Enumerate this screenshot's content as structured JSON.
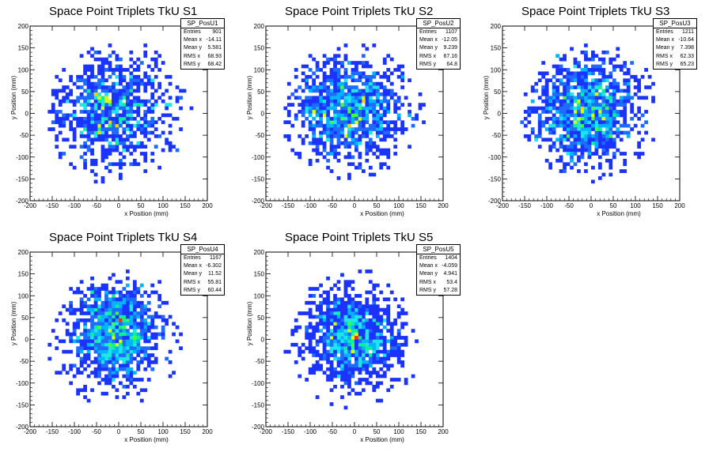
{
  "colors": {
    "palette": [
      "#1a33ff",
      "#1e6bff",
      "#00b4ff",
      "#1ee6e6",
      "#10f090",
      "#40ff40",
      "#d4ff10",
      "#ffd000",
      "#ff3010"
    ],
    "frame": "#000000",
    "background": "#ffffff"
  },
  "chart_data": [
    {
      "type": "heatmap",
      "title": "Space Point Triplets TkU S1",
      "xlabel": "x Position (mm)",
      "ylabel": "y Position (mm)",
      "xlim": [
        -200,
        200
      ],
      "ylim": [
        -200,
        200
      ],
      "xticks": [
        -200,
        -150,
        -100,
        -50,
        0,
        50,
        100,
        150,
        200
      ],
      "yticks": [
        -200,
        -150,
        -100,
        -50,
        0,
        50,
        100,
        150,
        200
      ],
      "bin_width_mm": 8,
      "stats": {
        "name": "SP_PosU1",
        "rows": [
          {
            "label": "Entries",
            "value": "901"
          },
          {
            "label": "Mean x",
            "value": "-14.11"
          },
          {
            "label": "Mean y",
            "value": "5.581"
          },
          {
            "label": "RMS x",
            "value": "68.93"
          },
          {
            "label": "RMS y",
            "value": "68.42"
          }
        ]
      },
      "distribution": {
        "entries": 901,
        "mean_x": -14.11,
        "mean_y": 5.581,
        "rms_x": 68.93,
        "rms_y": 68.42,
        "radius_mm": 165
      }
    },
    {
      "type": "heatmap",
      "title": "Space Point Triplets TkU S2",
      "xlabel": "x Position (mm)",
      "ylabel": "y Position (mm)",
      "xlim": [
        -200,
        200
      ],
      "ylim": [
        -200,
        200
      ],
      "xticks": [
        -200,
        -150,
        -100,
        -50,
        0,
        50,
        100,
        150,
        200
      ],
      "yticks": [
        -200,
        -150,
        -100,
        -50,
        0,
        50,
        100,
        150,
        200
      ],
      "bin_width_mm": 8,
      "stats": {
        "name": "SP_PosU2",
        "rows": [
          {
            "label": "Entries",
            "value": "1107"
          },
          {
            "label": "Mean x",
            "value": "-12.05"
          },
          {
            "label": "Mean y",
            "value": "9.239"
          },
          {
            "label": "RMS x",
            "value": "67.16"
          },
          {
            "label": "RMS y",
            "value": "64.8"
          }
        ]
      },
      "distribution": {
        "entries": 1107,
        "mean_x": -12.05,
        "mean_y": 9.239,
        "rms_x": 67.16,
        "rms_y": 64.8,
        "radius_mm": 165
      }
    },
    {
      "type": "heatmap",
      "title": "Space Point Triplets TkU S3",
      "xlabel": "x Position (mm)",
      "ylabel": "y Position (mm)",
      "xlim": [
        -200,
        200
      ],
      "ylim": [
        -200,
        200
      ],
      "xticks": [
        -200,
        -150,
        -100,
        -50,
        0,
        50,
        100,
        150,
        200
      ],
      "yticks": [
        -200,
        -150,
        -100,
        -50,
        0,
        50,
        100,
        150,
        200
      ],
      "bin_width_mm": 8,
      "stats": {
        "name": "SP_PosU3",
        "rows": [
          {
            "label": "Entries",
            "value": "1211"
          },
          {
            "label": "Mean x",
            "value": "-10.64"
          },
          {
            "label": "Mean y",
            "value": "7.398"
          },
          {
            "label": "RMS x",
            "value": "62.33"
          },
          {
            "label": "RMS y",
            "value": "65.23"
          }
        ]
      },
      "distribution": {
        "entries": 1211,
        "mean_x": -10.64,
        "mean_y": 7.398,
        "rms_x": 62.33,
        "rms_y": 65.23,
        "radius_mm": 160
      }
    },
    {
      "type": "heatmap",
      "title": "Space Point Triplets TkU S4",
      "xlabel": "x Position (mm)",
      "ylabel": "y Position (mm)",
      "xlim": [
        -200,
        200
      ],
      "ylim": [
        -200,
        200
      ],
      "xticks": [
        -200,
        -150,
        -100,
        -50,
        0,
        50,
        100,
        150,
        200
      ],
      "yticks": [
        -200,
        -150,
        -100,
        -50,
        0,
        50,
        100,
        150,
        200
      ],
      "bin_width_mm": 8,
      "stats": {
        "name": "SP_PosU4",
        "rows": [
          {
            "label": "Entries",
            "value": "1167"
          },
          {
            "label": "Mean x",
            "value": "-6.302"
          },
          {
            "label": "Mean y",
            "value": "11.52"
          },
          {
            "label": "RMS x",
            "value": "55.81"
          },
          {
            "label": "RMS y",
            "value": "60.44"
          }
        ]
      },
      "distribution": {
        "entries": 1167,
        "mean_x": -6.302,
        "mean_y": 11.52,
        "rms_x": 55.81,
        "rms_y": 60.44,
        "radius_mm": 160
      }
    },
    {
      "type": "heatmap",
      "title": "Space Point Triplets TkU S5",
      "xlabel": "x Position (mm)",
      "ylabel": "y Position (mm)",
      "xlim": [
        -200,
        200
      ],
      "ylim": [
        -200,
        200
      ],
      "xticks": [
        -200,
        -150,
        -100,
        -50,
        0,
        50,
        100,
        150,
        200
      ],
      "yticks": [
        -200,
        -150,
        -100,
        -50,
        0,
        50,
        100,
        150,
        200
      ],
      "bin_width_mm": 8,
      "stats": {
        "name": "SP_PosU5",
        "rows": [
          {
            "label": "Entries",
            "value": "1404"
          },
          {
            "label": "Mean x",
            "value": "-4.059"
          },
          {
            "label": "Mean y",
            "value": "4.941"
          },
          {
            "label": "RMS x",
            "value": "53.4"
          },
          {
            "label": "RMS y",
            "value": "57.28"
          }
        ]
      },
      "distribution": {
        "entries": 1404,
        "mean_x": -4.059,
        "mean_y": 4.941,
        "rms_x": 53.4,
        "rms_y": 57.28,
        "radius_mm": 160
      }
    }
  ]
}
